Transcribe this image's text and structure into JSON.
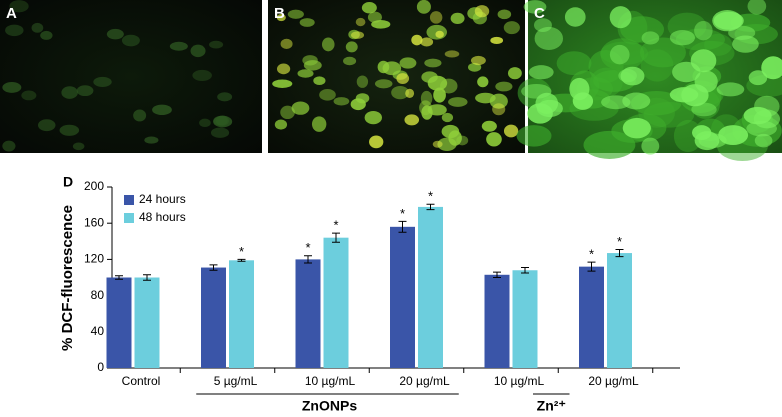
{
  "panels": [
    "A",
    "B",
    "C"
  ],
  "chart_data": {
    "type": "bar",
    "panel": "D",
    "ylabel": "% DCF-fluorescence",
    "categories": [
      "Control",
      "5 µg/mL",
      "10 µg/mL",
      "20 µg/mL",
      "10 µg/mL",
      "20 µg/mL"
    ],
    "groups": [
      "ZnONPs",
      "Zn²⁺"
    ],
    "series": [
      {
        "name": "24 hours",
        "color": "#3a55a8",
        "values": [
          100,
          111,
          120,
          156,
          103,
          112
        ],
        "errors": [
          2,
          3,
          4,
          6,
          3,
          5
        ],
        "markers": [
          null,
          null,
          "*",
          "*",
          null,
          "*"
        ]
      },
      {
        "name": "48 hours",
        "color": "#6ccedd",
        "values": [
          100,
          119,
          144,
          178,
          108,
          127
        ],
        "errors": [
          3,
          1,
          5,
          3,
          3,
          4
        ],
        "markers": [
          null,
          "*",
          "*",
          "*",
          null,
          "*"
        ]
      }
    ],
    "ylim": [
      0,
      200
    ],
    "yticks": [
      0,
      40,
      80,
      120,
      160,
      200
    ],
    "legend": "upper left"
  }
}
